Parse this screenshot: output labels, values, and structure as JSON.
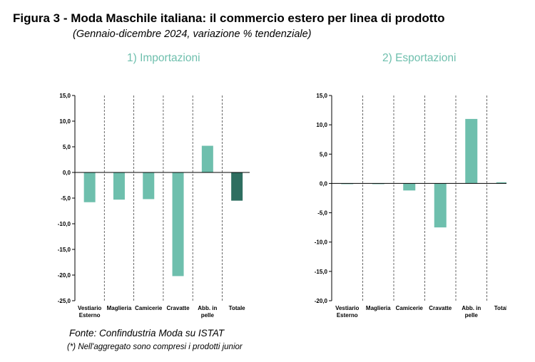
{
  "figure": {
    "title": "Figura 3 - Moda Maschile italiana: il commercio estero per linea di prodotto",
    "subtitle": "(Gennaio-dicembre 2024, variazione % tendenziale)"
  },
  "footer": {
    "source": "Fonte: Confindustria Moda su ISTAT",
    "note": "(*) Nell'aggregato sono compresi i prodotti junior"
  },
  "colors": {
    "bar": "#6ebfad",
    "total_bar": "#2e6e60",
    "panel_title": "#6ebfad"
  },
  "chart_data": [
    {
      "type": "bar",
      "title": "1) Importazioni",
      "categories": [
        [
          "Vestiario",
          "Esterno"
        ],
        [
          "Maglieria"
        ],
        [
          "Camicerie"
        ],
        [
          "Cravatte"
        ],
        [
          "Abb. in",
          "pelle"
        ],
        [
          "Totale"
        ]
      ],
      "values": [
        -5.8,
        -5.3,
        -5.2,
        -20.2,
        5.2,
        -5.5
      ],
      "ylim": [
        -25,
        15
      ],
      "yticks": [
        15,
        10,
        5,
        0,
        -5,
        -10,
        -15,
        -20,
        -25
      ],
      "ytick_labels": [
        "15,0",
        "10,0",
        "5,0",
        "0,0",
        "-5,0",
        "-10,0",
        "-15,0",
        "-20,0",
        "-25,0"
      ],
      "highlight_index": 5,
      "grid": "vertical dashed separators"
    },
    {
      "type": "bar",
      "title": "2) Esportazioni",
      "categories": [
        [
          "Vestiario",
          "Esterno"
        ],
        [
          "Maglieria"
        ],
        [
          "Camicerie"
        ],
        [
          "Cravatte"
        ],
        [
          "Abb. in",
          "pelle"
        ],
        [
          "Totale"
        ]
      ],
      "values": [
        0.0,
        -0.1,
        -1.2,
        -7.5,
        11.0,
        0.2
      ],
      "ylim": [
        -20,
        15
      ],
      "yticks": [
        15,
        10,
        5,
        0,
        -5,
        -10,
        -15,
        -20
      ],
      "ytick_labels": [
        "15,0",
        "10,0",
        "5,0",
        "0,0",
        "-5,0",
        "-10,0",
        "-15,0",
        "-20,0"
      ],
      "highlight_index": -1,
      "grid": "vertical dashed separators"
    }
  ]
}
